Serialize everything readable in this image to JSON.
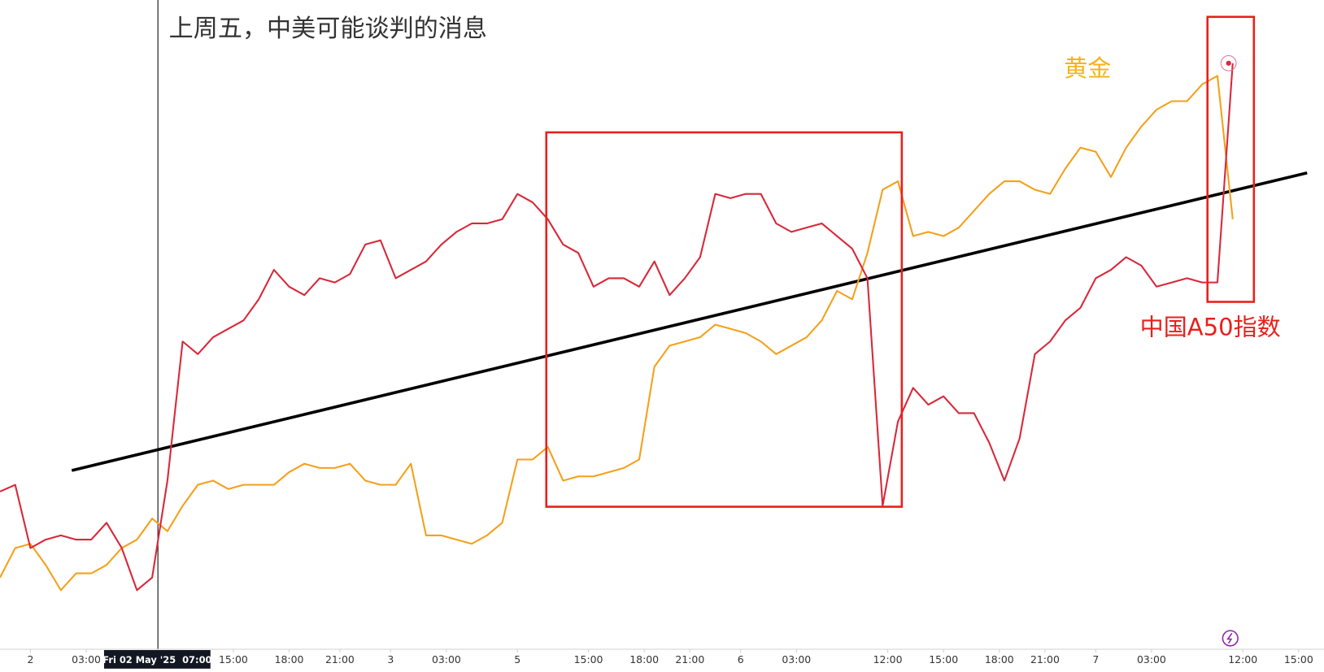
{
  "chart_data": {
    "type": "line",
    "title": "上周五，中美可能谈判的消息",
    "x": [
      0,
      3,
      6,
      9,
      12,
      15,
      18,
      21,
      24,
      27,
      30,
      33,
      36,
      39,
      42,
      45,
      48,
      51,
      54,
      57,
      60,
      63,
      66,
      69,
      72,
      75,
      78,
      81,
      84,
      87,
      90,
      93,
      96,
      99,
      102,
      105,
      108,
      111,
      114,
      117,
      120,
      123,
      126,
      129,
      132,
      135,
      138,
      141,
      144,
      147,
      150,
      153,
      156,
      159,
      162,
      165,
      168,
      171,
      174,
      177,
      180,
      183,
      186,
      189,
      192,
      195,
      198,
      201,
      204,
      207,
      210,
      213,
      216,
      219,
      222,
      225,
      228,
      231,
      234,
      237,
      240,
      243
    ],
    "xlim": [
      0,
      261
    ],
    "ylim": [
      0,
      770
    ],
    "xticks": [
      {
        "value": 6,
        "label": "2"
      },
      {
        "value": 17,
        "label": "03:00"
      },
      {
        "value": 31,
        "label": "Fri 02 May '25  07:00"
      },
      {
        "value": 46,
        "label": "15:00"
      },
      {
        "value": 57,
        "label": "18:00"
      },
      {
        "value": 67,
        "label": "21:00"
      },
      {
        "value": 77,
        "label": "3"
      },
      {
        "value": 88,
        "label": "03:00"
      },
      {
        "value": 102,
        "label": "5"
      },
      {
        "value": 116,
        "label": "15:00"
      },
      {
        "value": 127,
        "label": "18:00"
      },
      {
        "value": 136,
        "label": "21:00"
      },
      {
        "value": 146,
        "label": "6"
      },
      {
        "value": 157,
        "label": "03:00"
      },
      {
        "value": 175,
        "label": "12:00"
      },
      {
        "value": 186,
        "label": "15:00"
      },
      {
        "value": 197,
        "label": "18:00"
      },
      {
        "value": 206,
        "label": "21:00"
      },
      {
        "value": 216,
        "label": "7"
      },
      {
        "value": 227,
        "label": "03:00"
      },
      {
        "value": 245,
        "label": "12:00"
      },
      {
        "value": 256,
        "label": "15:00"
      }
    ],
    "series": [
      {
        "name": "中国A50指数",
        "color": "#d8283a",
        "values": [
          187,
          195,
          120,
          130,
          135,
          130,
          130,
          150,
          120,
          70,
          85,
          200,
          365,
          350,
          370,
          380,
          390,
          415,
          450,
          430,
          420,
          440,
          435,
          445,
          480,
          485,
          440,
          450,
          460,
          480,
          495,
          505,
          505,
          510,
          540,
          530,
          510,
          480,
          470,
          430,
          440,
          440,
          430,
          460,
          420,
          440,
          465,
          540,
          535,
          540,
          540,
          505,
          495,
          500,
          505,
          490,
          475,
          440,
          170,
          270,
          310,
          290,
          300,
          280,
          280,
          245,
          200,
          250,
          350,
          365,
          390,
          405,
          440,
          450,
          465,
          455,
          430,
          435,
          440,
          435,
          435,
          695
        ]
      },
      {
        "name": "黄金",
        "color": "#f5a01a",
        "values": [
          85,
          120,
          125,
          100,
          70,
          90,
          90,
          100,
          120,
          130,
          155,
          140,
          170,
          195,
          200,
          190,
          195,
          195,
          195,
          210,
          220,
          215,
          215,
          220,
          200,
          195,
          195,
          220,
          135,
          135,
          130,
          125,
          135,
          150,
          225,
          225,
          240,
          200,
          205,
          205,
          210,
          215,
          225,
          335,
          360,
          365,
          370,
          385,
          380,
          375,
          365,
          350,
          360,
          370,
          390,
          425,
          415,
          470,
          545,
          555,
          490,
          495,
          490,
          500,
          520,
          540,
          555,
          555,
          545,
          540,
          570,
          595,
          590,
          560,
          595,
          620,
          640,
          650,
          650,
          670,
          680,
          510
        ]
      }
    ]
  }
}
